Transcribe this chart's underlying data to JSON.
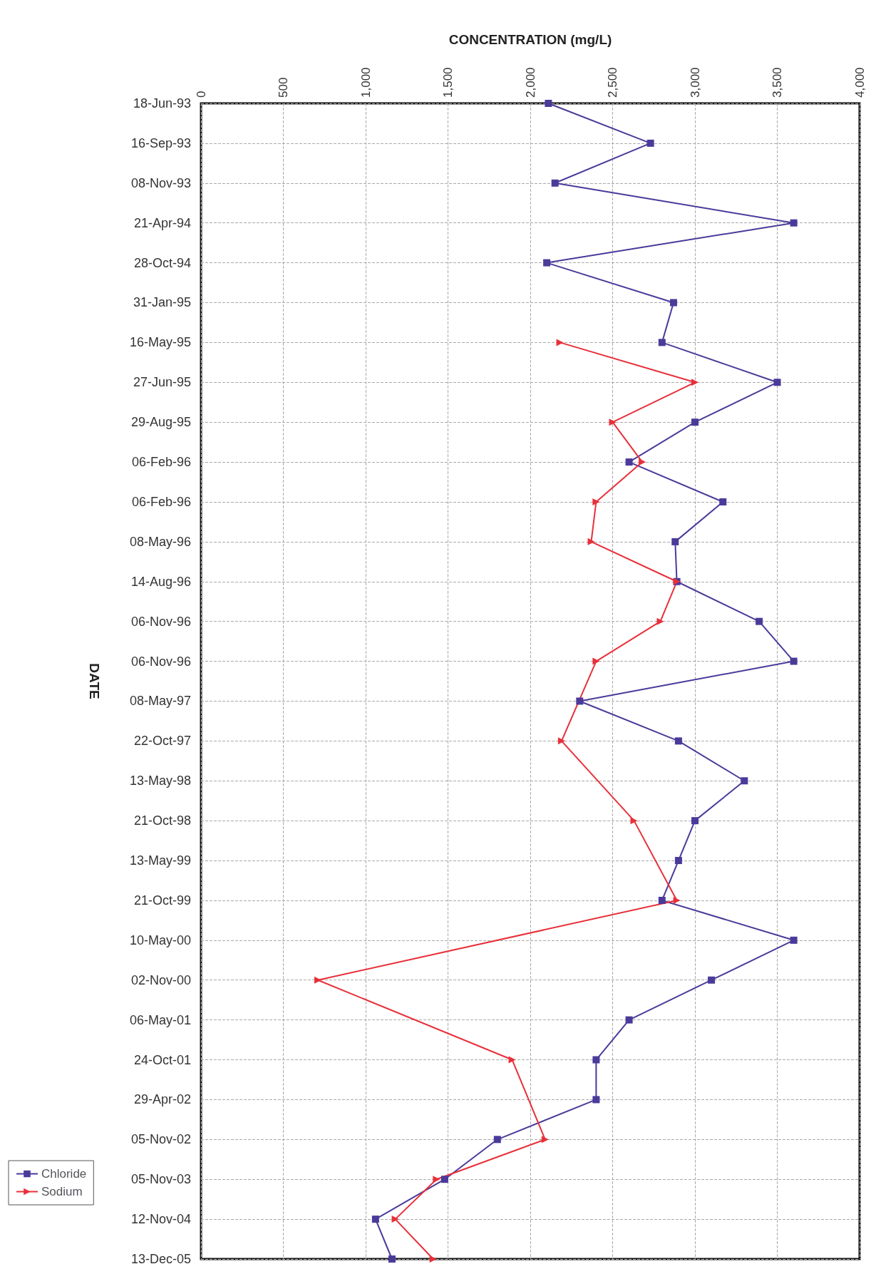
{
  "chart_data": {
    "type": "line",
    "orientation": "horizontal",
    "xlabel": "CONCENTRATION (mg/L)",
    "ylabel": "DATE",
    "categories": [
      "18-Jun-93",
      "16-Sep-93",
      "08-Nov-93",
      "21-Apr-94",
      "28-Oct-94",
      "31-Jan-95",
      "16-May-95",
      "27-Jun-95",
      "29-Aug-95",
      "06-Feb-96",
      "06-Feb-96",
      "08-May-96",
      "14-Aug-96",
      "06-Nov-96",
      "06-Nov-96",
      "08-May-97",
      "22-Oct-97",
      "13-May-98",
      "21-Oct-98",
      "13-May-99",
      "21-Oct-99",
      "10-May-00",
      "02-Nov-00",
      "06-May-01",
      "24-Oct-01",
      "29-Apr-02",
      "05-Nov-02",
      "05-Nov-03",
      "12-Nov-04",
      "13-Dec-05"
    ],
    "series": [
      {
        "name": "Chloride",
        "color": "#4b3a9a",
        "marker": "square",
        "values": [
          2110,
          2730,
          2150,
          3600,
          2100,
          2870,
          2800,
          3500,
          3000,
          2600,
          3170,
          2880,
          2890,
          3390,
          3600,
          2300,
          2900,
          3300,
          3000,
          2900,
          2800,
          3600,
          3100,
          2600,
          2400,
          2400,
          1800,
          1480,
          1060,
          1160
        ]
      },
      {
        "name": "Sodium",
        "color": "#e8303a",
        "marker": "triangle",
        "values": [
          null,
          null,
          null,
          null,
          null,
          null,
          2180,
          3000,
          2500,
          2680,
          2400,
          2370,
          2890,
          2790,
          2400,
          null,
          2190,
          null,
          2630,
          null,
          2890,
          null,
          710,
          null,
          1890,
          null,
          2090,
          1430,
          1180,
          1410
        ]
      }
    ],
    "xlim": [
      0,
      4000
    ],
    "xticks": [
      {
        "value": 0,
        "label": "0"
      },
      {
        "value": 500,
        "label": "500"
      },
      {
        "value": 1000,
        "label": "1,000"
      },
      {
        "value": 1500,
        "label": "1,500"
      },
      {
        "value": 2000,
        "label": "2,000"
      },
      {
        "value": 2500,
        "label": "2,500"
      },
      {
        "value": 3000,
        "label": "3,000"
      },
      {
        "value": 3500,
        "label": "3,500"
      },
      {
        "value": 4000,
        "label": "4,000"
      }
    ],
    "grid": true,
    "legend": "bottom left",
    "line_style": "solid"
  }
}
